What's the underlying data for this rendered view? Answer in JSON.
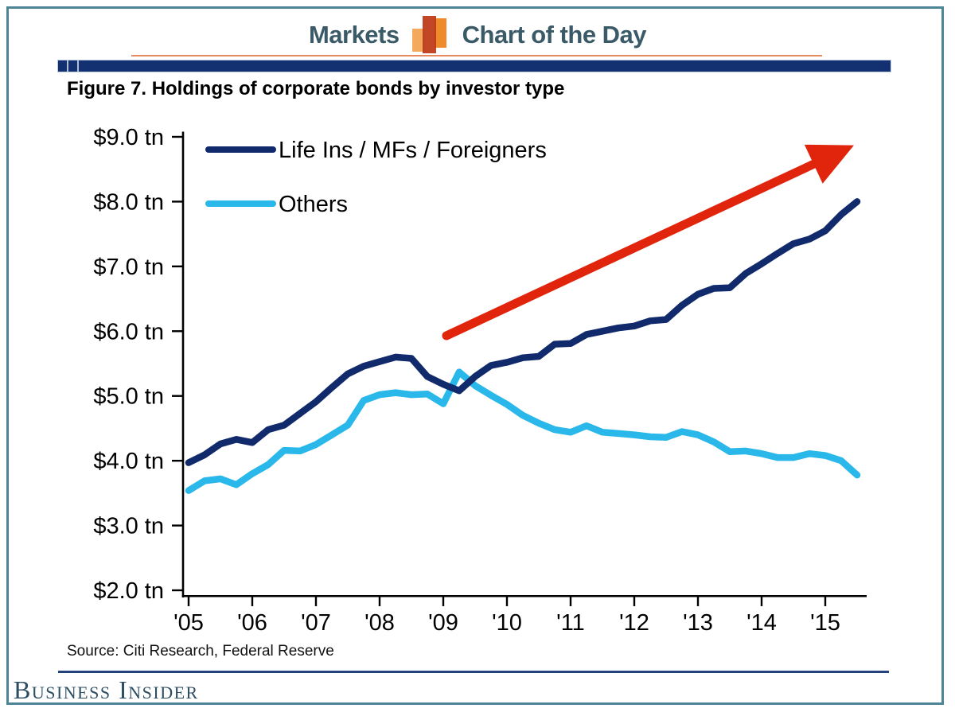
{
  "header": {
    "brand": "Markets",
    "title": "Chart of the Day",
    "text_color": "#3b5a68",
    "icon": {
      "name": "bar-chart-icon",
      "bar_colors": [
        "#f5a95c",
        "#bc3916",
        "#ee8c2c"
      ]
    },
    "orange_rule_color": "#e78a5d",
    "navy_bar_color": "#133070"
  },
  "source_note": "Source: Citi Research, Federal Reserve",
  "footer": {
    "logo_text": "Business Insider",
    "logo_color": "#2d4d62",
    "rule_color": "#24427c"
  },
  "frame_border_color": "#4d8596",
  "chart_data": {
    "type": "line",
    "title": "Figure 7. Holdings of corporate bonds by investor type",
    "xlabel": "",
    "ylabel": "",
    "grid": false,
    "legend_position": "top-left-inside",
    "xlim": [
      2004.93,
      2015.65
    ],
    "ylim": [
      1.89,
      9.08
    ],
    "yticks": [
      {
        "value": 9.0,
        "label": "$9.0 tn"
      },
      {
        "value": 8.0,
        "label": "$8.0 tn"
      },
      {
        "value": 7.0,
        "label": "$7.0 tn"
      },
      {
        "value": 6.0,
        "label": "$6.0 tn"
      },
      {
        "value": 5.0,
        "label": "$5.0 tn"
      },
      {
        "value": 4.0,
        "label": "$4.0 tn"
      },
      {
        "value": 3.0,
        "label": "$3.0 tn"
      },
      {
        "value": 2.0,
        "label": "$2.0 tn"
      }
    ],
    "xticks": [
      {
        "value": 2005,
        "label": "'05"
      },
      {
        "value": 2006,
        "label": "'06"
      },
      {
        "value": 2007,
        "label": "'07"
      },
      {
        "value": 2008,
        "label": "'08"
      },
      {
        "value": 2009,
        "label": "'09"
      },
      {
        "value": 2010,
        "label": "'10"
      },
      {
        "value": 2011,
        "label": "'11"
      },
      {
        "value": 2012,
        "label": "'12"
      },
      {
        "value": 2013,
        "label": "'13"
      },
      {
        "value": 2014,
        "label": "'14"
      },
      {
        "value": 2015,
        "label": "'15"
      }
    ],
    "x": [
      2005.0,
      2005.25,
      2005.5,
      2005.75,
      2006.0,
      2006.25,
      2006.5,
      2006.75,
      2007.0,
      2007.25,
      2007.5,
      2007.75,
      2008.0,
      2008.25,
      2008.5,
      2008.75,
      2009.0,
      2009.25,
      2009.5,
      2009.75,
      2010.0,
      2010.25,
      2010.5,
      2010.75,
      2011.0,
      2011.25,
      2011.5,
      2011.75,
      2012.0,
      2012.25,
      2012.5,
      2012.75,
      2013.0,
      2013.25,
      2013.5,
      2013.75,
      2014.0,
      2014.25,
      2014.5,
      2014.75,
      2015.0,
      2015.25,
      2015.5
    ],
    "series": [
      {
        "name": "Life Ins / MFs / Foreigners",
        "color": "#112a6b",
        "values": [
          3.97,
          4.09,
          4.26,
          4.33,
          4.28,
          4.48,
          4.55,
          4.73,
          4.91,
          5.13,
          5.34,
          5.46,
          5.53,
          5.6,
          5.58,
          5.3,
          5.18,
          5.08,
          5.3,
          5.47,
          5.52,
          5.59,
          5.61,
          5.8,
          5.81,
          5.95,
          6.0,
          6.05,
          6.08,
          6.16,
          6.18,
          6.4,
          6.57,
          6.66,
          6.67,
          6.89,
          7.04,
          7.2,
          7.35,
          7.42,
          7.55,
          7.8,
          8.0
        ]
      },
      {
        "name": "Others",
        "color": "#2ab7e9",
        "values": [
          3.54,
          3.69,
          3.72,
          3.63,
          3.8,
          3.94,
          4.16,
          4.15,
          4.25,
          4.4,
          4.55,
          4.93,
          5.02,
          5.05,
          5.02,
          5.03,
          4.88,
          5.37,
          5.16,
          5.01,
          4.87,
          4.7,
          4.58,
          4.48,
          4.44,
          4.54,
          4.44,
          4.42,
          4.4,
          4.37,
          4.36,
          4.45,
          4.4,
          4.29,
          4.14,
          4.15,
          4.11,
          4.05,
          4.05,
          4.11,
          4.08,
          4.0,
          3.78
        ]
      }
    ],
    "annotation_arrow": {
      "color": "#e1250c",
      "from": {
        "x": 2009.05,
        "y": 5.93
      },
      "to": {
        "x": 2015.45,
        "y": 8.87
      }
    }
  }
}
